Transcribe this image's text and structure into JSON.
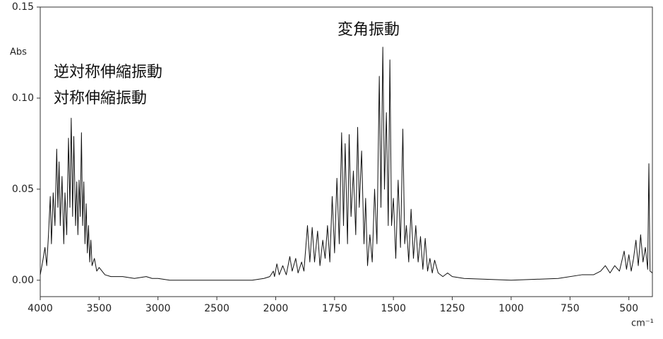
{
  "chart_data": {
    "type": "line",
    "y_label": "Abs",
    "x_label": "cm⁻¹",
    "annotations": [
      "逆対称伸縮振動",
      "対称伸縮振動",
      "変角振動"
    ],
    "xlim": [
      4000,
      400
    ],
    "ylim": [
      -0.009,
      0.15
    ],
    "xticks": [
      4000,
      3500,
      3000,
      2500,
      2000,
      1750,
      1500,
      1250,
      1000,
      750,
      500
    ],
    "yticks": [
      {
        "value": 0,
        "label": "0.00"
      },
      {
        "value": 0.05,
        "label": "0.05"
      },
      {
        "value": 0.1,
        "label": "0.10"
      },
      {
        "value": 0.15,
        "label": "0.15"
      }
    ],
    "series": [
      {
        "color": "#111111",
        "x": [
          4000,
          3980,
          3960,
          3945,
          3930,
          3915,
          3905,
          3890,
          3875,
          3860,
          3850,
          3840,
          3830,
          3815,
          3800,
          3790,
          3775,
          3760,
          3748,
          3737,
          3725,
          3715,
          3700,
          3690,
          3680,
          3670,
          3660,
          3650,
          3640,
          3630,
          3620,
          3610,
          3600,
          3590,
          3580,
          3570,
          3560,
          3540,
          3520,
          3500,
          3450,
          3400,
          3300,
          3200,
          3100,
          3050,
          3000,
          2900,
          2700,
          2500,
          2200,
          2100,
          2050,
          2020,
          2010,
          1995,
          1985,
          1970,
          1955,
          1940,
          1930,
          1915,
          1905,
          1890,
          1880,
          1865,
          1855,
          1845,
          1835,
          1822,
          1812,
          1800,
          1790,
          1780,
          1770,
          1760,
          1750,
          1740,
          1730,
          1720,
          1712,
          1705,
          1695,
          1688,
          1680,
          1670,
          1660,
          1652,
          1645,
          1635,
          1625,
          1618,
          1610,
          1600,
          1590,
          1580,
          1570,
          1560,
          1553,
          1545,
          1538,
          1530,
          1522,
          1515,
          1508,
          1500,
          1490,
          1480,
          1470,
          1460,
          1452,
          1445,
          1435,
          1425,
          1415,
          1405,
          1395,
          1385,
          1375,
          1365,
          1355,
          1345,
          1335,
          1325,
          1310,
          1290,
          1270,
          1250,
          1200,
          1000,
          800,
          700,
          650,
          620,
          600,
          580,
          560,
          540,
          520,
          510,
          500,
          490,
          480,
          470,
          460,
          450,
          440,
          430,
          420,
          415,
          410,
          400
        ],
        "values": [
          0.003,
          0.01,
          0.018,
          0.008,
          0.025,
          0.046,
          0.02,
          0.048,
          0.03,
          0.072,
          0.04,
          0.065,
          0.03,
          0.057,
          0.02,
          0.048,
          0.025,
          0.078,
          0.04,
          0.089,
          0.035,
          0.079,
          0.03,
          0.054,
          0.025,
          0.055,
          0.035,
          0.081,
          0.03,
          0.054,
          0.02,
          0.042,
          0.015,
          0.03,
          0.01,
          0.022,
          0.008,
          0.012,
          0.005,
          0.007,
          0.003,
          0.002,
          0.002,
          0.001,
          0.002,
          0.001,
          0.001,
          0,
          0,
          0,
          0,
          0.001,
          0.002,
          0.005,
          0.002,
          0.009,
          0.003,
          0.008,
          0.003,
          0.013,
          0.005,
          0.012,
          0.004,
          0.01,
          0.005,
          0.03,
          0.01,
          0.029,
          0.01,
          0.027,
          0.008,
          0.022,
          0.012,
          0.03,
          0.01,
          0.046,
          0.015,
          0.056,
          0.02,
          0.081,
          0.03,
          0.075,
          0.02,
          0.08,
          0.035,
          0.06,
          0.025,
          0.084,
          0.04,
          0.071,
          0.02,
          0.045,
          0.008,
          0.025,
          0.01,
          0.05,
          0.02,
          0.112,
          0.04,
          0.128,
          0.05,
          0.092,
          0.03,
          0.121,
          0.03,
          0.045,
          0.012,
          0.055,
          0.018,
          0.083,
          0.02,
          0.03,
          0.01,
          0.039,
          0.012,
          0.03,
          0.01,
          0.024,
          0.006,
          0.023,
          0.005,
          0.012,
          0.004,
          0.011,
          0.004,
          0.002,
          0.004,
          0.002,
          0.001,
          0,
          0.001,
          0.003,
          0.003,
          0.005,
          0.008,
          0.004,
          0.008,
          0.005,
          0.016,
          0.006,
          0.014,
          0.005,
          0.012,
          0.022,
          0.008,
          0.025,
          0.01,
          0.018,
          0.006,
          0.064,
          0.005,
          0.004
        ]
      }
    ]
  }
}
